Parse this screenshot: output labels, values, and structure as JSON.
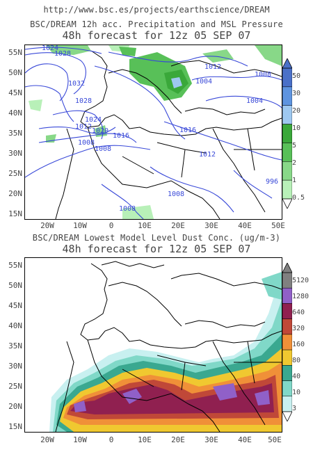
{
  "header": {
    "url": "http://www.bsc.es/projects/earthscience/DREAM"
  },
  "panel1": {
    "title": "BSC/DREAM 12h acc. Precipitation and MSL Pressure",
    "subtitle": "48h forecast for 12z 05 SEP 07",
    "isobars": [
      "1024",
      "1028",
      "1032",
      "1028",
      "1024",
      "1020",
      "1016",
      "1012",
      "1008",
      "1004",
      "1008",
      "1012",
      "1016",
      "1012",
      "1008",
      "1004",
      "996",
      "1008",
      "1008"
    ],
    "colorbar": {
      "labels": [
        "50",
        "30",
        "20",
        "10",
        "5",
        "2",
        "1",
        "0.5"
      ],
      "colors": [
        "#4a70c8",
        "#5e94e0",
        "#9ec8f0",
        "#3aa83a",
        "#58c058",
        "#88d888",
        "#b8f0b8"
      ]
    }
  },
  "panel2": {
    "title": "BSC/DREAM Lowest Model Level Dust Conc. (ug/m-3)",
    "subtitle": "48h forecast for 12z 05 SEP 07",
    "colorbar": {
      "labels": [
        "5120",
        "1280",
        "640",
        "320",
        "160",
        "80",
        "40",
        "10",
        "3"
      ],
      "colors": [
        "#808080",
        "#9060c8",
        "#902050",
        "#c04838",
        "#f09038",
        "#f0c830",
        "#3aa890",
        "#80d8c8",
        "#c8f0f0"
      ]
    }
  },
  "axes": {
    "lat_labels": [
      "55N",
      "50N",
      "45N",
      "40N",
      "35N",
      "30N",
      "25N",
      "20N",
      "15N"
    ],
    "lon_labels": [
      "20W",
      "10W",
      "0",
      "10E",
      "20E",
      "30E",
      "40E",
      "50E"
    ]
  }
}
